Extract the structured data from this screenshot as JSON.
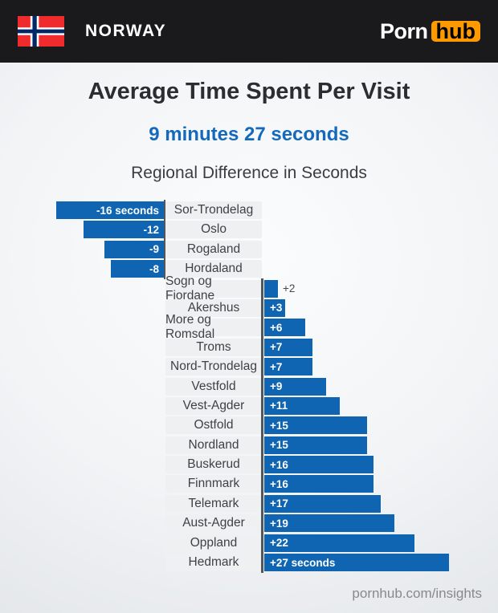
{
  "header": {
    "country": "NORWAY",
    "logo": {
      "part1": "Porn",
      "part2": "hub"
    }
  },
  "title": "Average Time Spent Per Visit",
  "subtitle": "9 minutes 27 seconds",
  "chart_heading": "Regional Difference in Seconds",
  "footer": "pornhub.com/insights",
  "colors": {
    "bar_blue": "#0f65b2",
    "accent_blue": "#1569bd",
    "pornhub_orange": "#ff9900",
    "flag_red": "#ef2b2d",
    "flag_navy": "#002868",
    "header_bg": "#1a1a1d"
  },
  "chart_data": {
    "type": "bar",
    "orientation": "horizontal-diverging",
    "title": "Regional Difference in Seconds",
    "unit": "seconds",
    "xlabel": "",
    "ylabel": "",
    "xlim": [
      -16,
      27
    ],
    "grid": false,
    "legend": false,
    "categories": [
      "Sor-Trondelag",
      "Oslo",
      "Rogaland",
      "Hordaland",
      "Sogn og Fjordane",
      "Akershus",
      "More og Romsdal",
      "Troms",
      "Nord-Trondelag",
      "Vestfold",
      "Vest-Agder",
      "Ostfold",
      "Nordland",
      "Buskerud",
      "Finnmark",
      "Telemark",
      "Aust-Agder",
      "Oppland",
      "Hedmark"
    ],
    "values": [
      -16,
      -12,
      -9,
      -8,
      2,
      3,
      6,
      7,
      7,
      9,
      11,
      15,
      15,
      16,
      16,
      17,
      19,
      22,
      27
    ],
    "bar_labels": [
      "-16 seconds",
      "-12",
      "-9",
      "-8",
      "+2",
      "+3",
      "+6",
      "+7",
      "+7",
      "+9",
      "+11",
      "+15",
      "+15",
      "+16",
      "+16",
      "+17",
      "+19",
      "+22",
      "+27 seconds"
    ]
  }
}
